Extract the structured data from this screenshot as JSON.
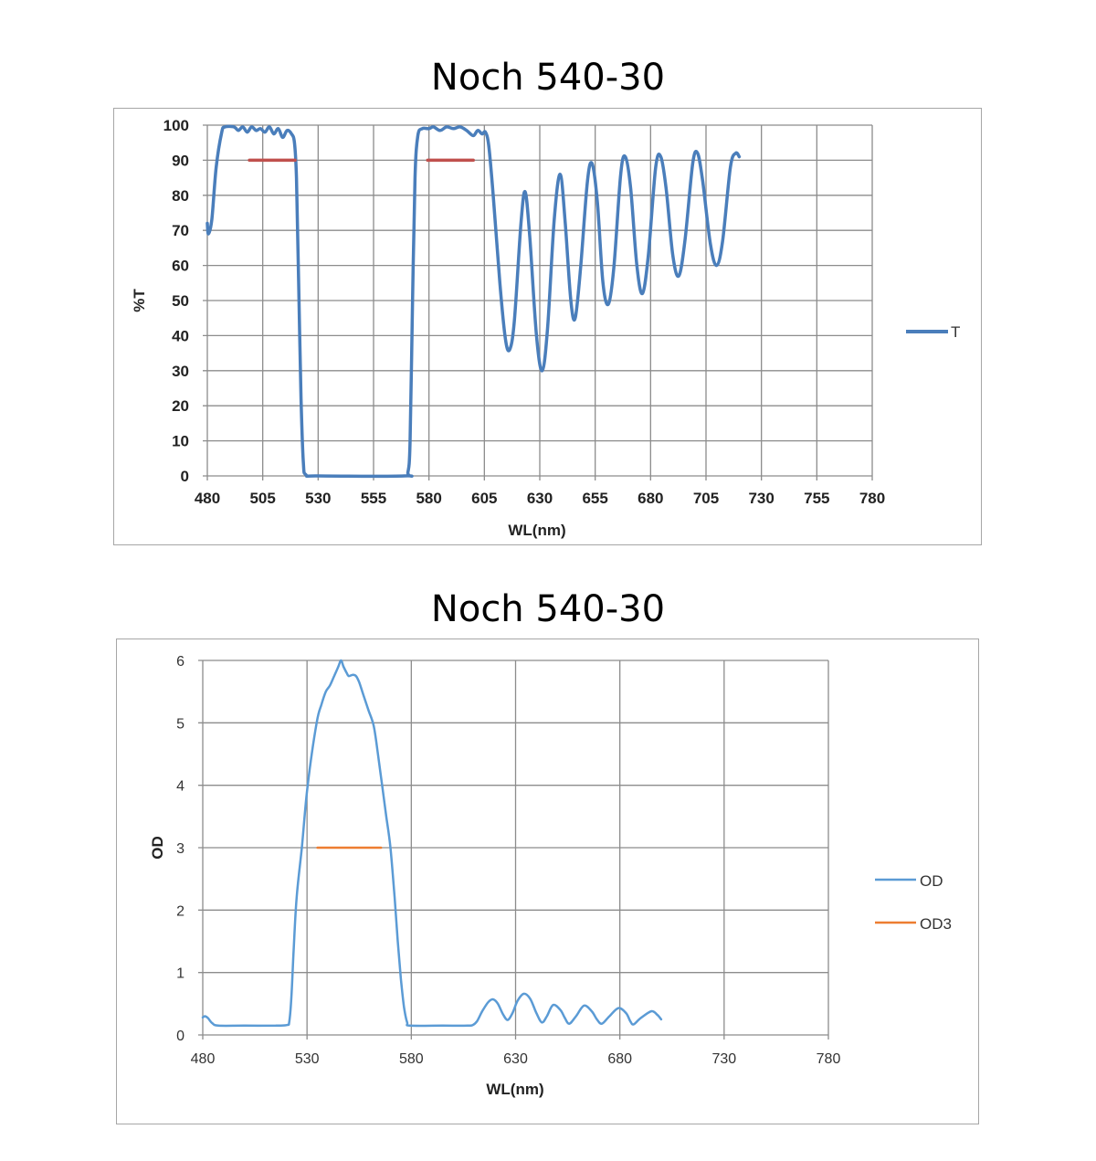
{
  "chart_data": [
    {
      "type": "line",
      "title": "Noch 540-30",
      "xlabel": "WL(nm)",
      "ylabel": "%T",
      "xlim": [
        480,
        780
      ],
      "ylim": [
        0,
        100
      ],
      "xticks": [
        "480",
        "505",
        "530",
        "555",
        "580",
        "605",
        "630",
        "655",
        "680",
        "705",
        "730",
        "755",
        "780"
      ],
      "yticks": [
        "0",
        "10",
        "20",
        "30",
        "40",
        "50",
        "60",
        "70",
        "80",
        "90",
        "100"
      ],
      "grid": true,
      "legend_position": "right",
      "series": [
        {
          "name": "T",
          "color": "#4A7EBB",
          "points": [
            [
              480,
              72
            ],
            [
              480.5,
              69
            ],
            [
              482,
              73
            ],
            [
              484,
              88
            ],
            [
              486.5,
              98
            ],
            [
              488,
              99.5
            ],
            [
              492,
              99.5
            ],
            [
              494,
              98.5
            ],
            [
              496,
              99.5
            ],
            [
              498,
              98
            ],
            [
              500,
              99.5
            ],
            [
              502,
              98.5
            ],
            [
              504,
              99
            ],
            [
              506,
              98
            ],
            [
              508,
              99.5
            ],
            [
              510,
              97.5
            ],
            [
              512,
              99
            ],
            [
              514,
              96.5
            ],
            [
              516,
              98.5
            ],
            [
              518,
              97.5
            ],
            [
              519.3,
              95
            ],
            [
              520.2,
              85
            ],
            [
              521.2,
              55
            ],
            [
              522.3,
              22
            ],
            [
              523.3,
              4
            ],
            [
              524.5,
              0.3
            ],
            [
              530,
              0
            ],
            [
              569,
              0
            ],
            [
              570.5,
              1
            ],
            [
              571.5,
              10
            ],
            [
              572.6,
              50
            ],
            [
              573.7,
              85
            ],
            [
              575,
              97
            ],
            [
              577,
              99
            ],
            [
              580,
              99
            ],
            [
              582,
              99.5
            ],
            [
              585,
              98.5
            ],
            [
              588,
              99.5
            ],
            [
              591,
              99
            ],
            [
              594,
              99.5
            ],
            [
              597,
              98.5
            ],
            [
              600,
              97
            ],
            [
              602,
              98.5
            ],
            [
              604,
              97.5
            ],
            [
              605.5,
              98
            ],
            [
              607,
              94
            ],
            [
              609,
              80
            ],
            [
              612,
              55
            ],
            [
              614.5,
              39
            ],
            [
              616.4,
              36
            ],
            [
              618.5,
              44
            ],
            [
              621.5,
              72
            ],
            [
              623.4,
              81
            ],
            [
              625.5,
              68
            ],
            [
              628.5,
              40
            ],
            [
              631.1,
              30
            ],
            [
              633.5,
              42
            ],
            [
              636.5,
              73
            ],
            [
              639.2,
              86
            ],
            [
              641.5,
              72
            ],
            [
              644,
              50
            ],
            [
              646,
              45
            ],
            [
              648.5,
              60
            ],
            [
              651.5,
              84
            ],
            [
              653.6,
              89
            ],
            [
              656,
              78
            ],
            [
              658.5,
              55
            ],
            [
              661,
              49
            ],
            [
              663.5,
              60
            ],
            [
              666.5,
              86
            ],
            [
              668.6,
              91
            ],
            [
              671,
              82
            ],
            [
              673.8,
              60
            ],
            [
              676.3,
              52
            ],
            [
              679,
              63
            ],
            [
              682.3,
              88
            ],
            [
              684.6,
              91
            ],
            [
              687,
              82
            ],
            [
              690,
              63
            ],
            [
              692.7,
              57
            ],
            [
              695.5,
              67
            ],
            [
              699,
              89
            ],
            [
              701.2,
              92
            ],
            [
              703.5,
              84
            ],
            [
              707,
              66
            ],
            [
              709.8,
              60
            ],
            [
              712.5,
              67
            ],
            [
              716,
              88
            ],
            [
              718.4,
              92
            ],
            [
              720,
              91
            ]
          ]
        },
        {
          "name": "",
          "color": "#C0504D",
          "points": [
            [
              499,
              90
            ],
            [
              519.6,
              90
            ]
          ]
        },
        {
          "name": "",
          "color": "#C0504D",
          "points": [
            [
              579.4,
              90
            ],
            [
              600,
              90
            ]
          ]
        }
      ]
    },
    {
      "type": "line",
      "title": "Noch 540-30",
      "xlabel": "WL(nm)",
      "ylabel": "OD",
      "xlim": [
        480,
        780
      ],
      "ylim": [
        0,
        6
      ],
      "xticks": [
        "480",
        "530",
        "580",
        "630",
        "680",
        "730",
        "780"
      ],
      "yticks": [
        "0",
        "1",
        "2",
        "3",
        "4",
        "5",
        "6"
      ],
      "grid": true,
      "legend_position": "right",
      "series": [
        {
          "name": "OD",
          "color": "#5B9BD5",
          "points": [
            [
              480,
              0.28
            ],
            [
              481,
              0.3
            ],
            [
              482.5,
              0.27
            ],
            [
              484.5,
              0.19
            ],
            [
              487.5,
              0.15
            ],
            [
              500,
              0.15
            ],
            [
              515,
              0.15
            ],
            [
              520.5,
              0.16
            ],
            [
              521.5,
              0.22
            ],
            [
              522.5,
              0.6
            ],
            [
              523.5,
              1.3
            ],
            [
              525,
              2.2
            ],
            [
              527.5,
              3.0
            ],
            [
              530.3,
              4.0
            ],
            [
              534.6,
              5.0
            ],
            [
              537,
              5.3
            ],
            [
              539,
              5.5
            ],
            [
              541,
              5.6
            ],
            [
              543,
              5.75
            ],
            [
              545,
              5.9
            ],
            [
              546.3,
              6.0
            ],
            [
              547.5,
              5.9
            ],
            [
              549,
              5.8
            ],
            [
              550,
              5.75
            ],
            [
              552,
              5.77
            ],
            [
              553.5,
              5.75
            ],
            [
              555,
              5.65
            ],
            [
              557,
              5.45
            ],
            [
              559.5,
              5.2
            ],
            [
              562,
              4.95
            ],
            [
              564,
              4.5
            ],
            [
              566,
              4.0
            ],
            [
              568,
              3.5
            ],
            [
              570,
              3.0
            ],
            [
              572,
              2.2
            ],
            [
              573.5,
              1.5
            ],
            [
              575,
              0.9
            ],
            [
              576.5,
              0.45
            ],
            [
              578,
              0.2
            ],
            [
              579.5,
              0.15
            ],
            [
              595,
              0.15
            ],
            [
              607,
              0.15
            ],
            [
              609.5,
              0.16
            ],
            [
              611.5,
              0.22
            ],
            [
              614,
              0.38
            ],
            [
              617,
              0.53
            ],
            [
              619.2,
              0.57
            ],
            [
              621.5,
              0.5
            ],
            [
              624,
              0.33
            ],
            [
              626.2,
              0.24
            ],
            [
              628.5,
              0.35
            ],
            [
              631,
              0.55
            ],
            [
              634,
              0.66
            ],
            [
              637,
              0.58
            ],
            [
              640,
              0.35
            ],
            [
              642.6,
              0.2
            ],
            [
              645,
              0.3
            ],
            [
              648,
              0.48
            ],
            [
              651.5,
              0.4
            ],
            [
              653.5,
              0.28
            ],
            [
              655.7,
              0.18
            ],
            [
              659,
              0.3
            ],
            [
              662.8,
              0.47
            ],
            [
              666.5,
              0.38
            ],
            [
              669,
              0.25
            ],
            [
              671.4,
              0.18
            ],
            [
              675,
              0.3
            ],
            [
              679.3,
              0.43
            ],
            [
              683,
              0.35
            ],
            [
              685,
              0.22
            ],
            [
              686.6,
              0.17
            ],
            [
              690,
              0.27
            ],
            [
              695.2,
              0.38
            ],
            [
              698,
              0.32
            ],
            [
              699.8,
              0.25
            ]
          ]
        },
        {
          "name": "OD3",
          "color": "#ED7D31",
          "points": [
            [
              535,
              3
            ],
            [
              565.5,
              3
            ]
          ]
        }
      ]
    }
  ]
}
